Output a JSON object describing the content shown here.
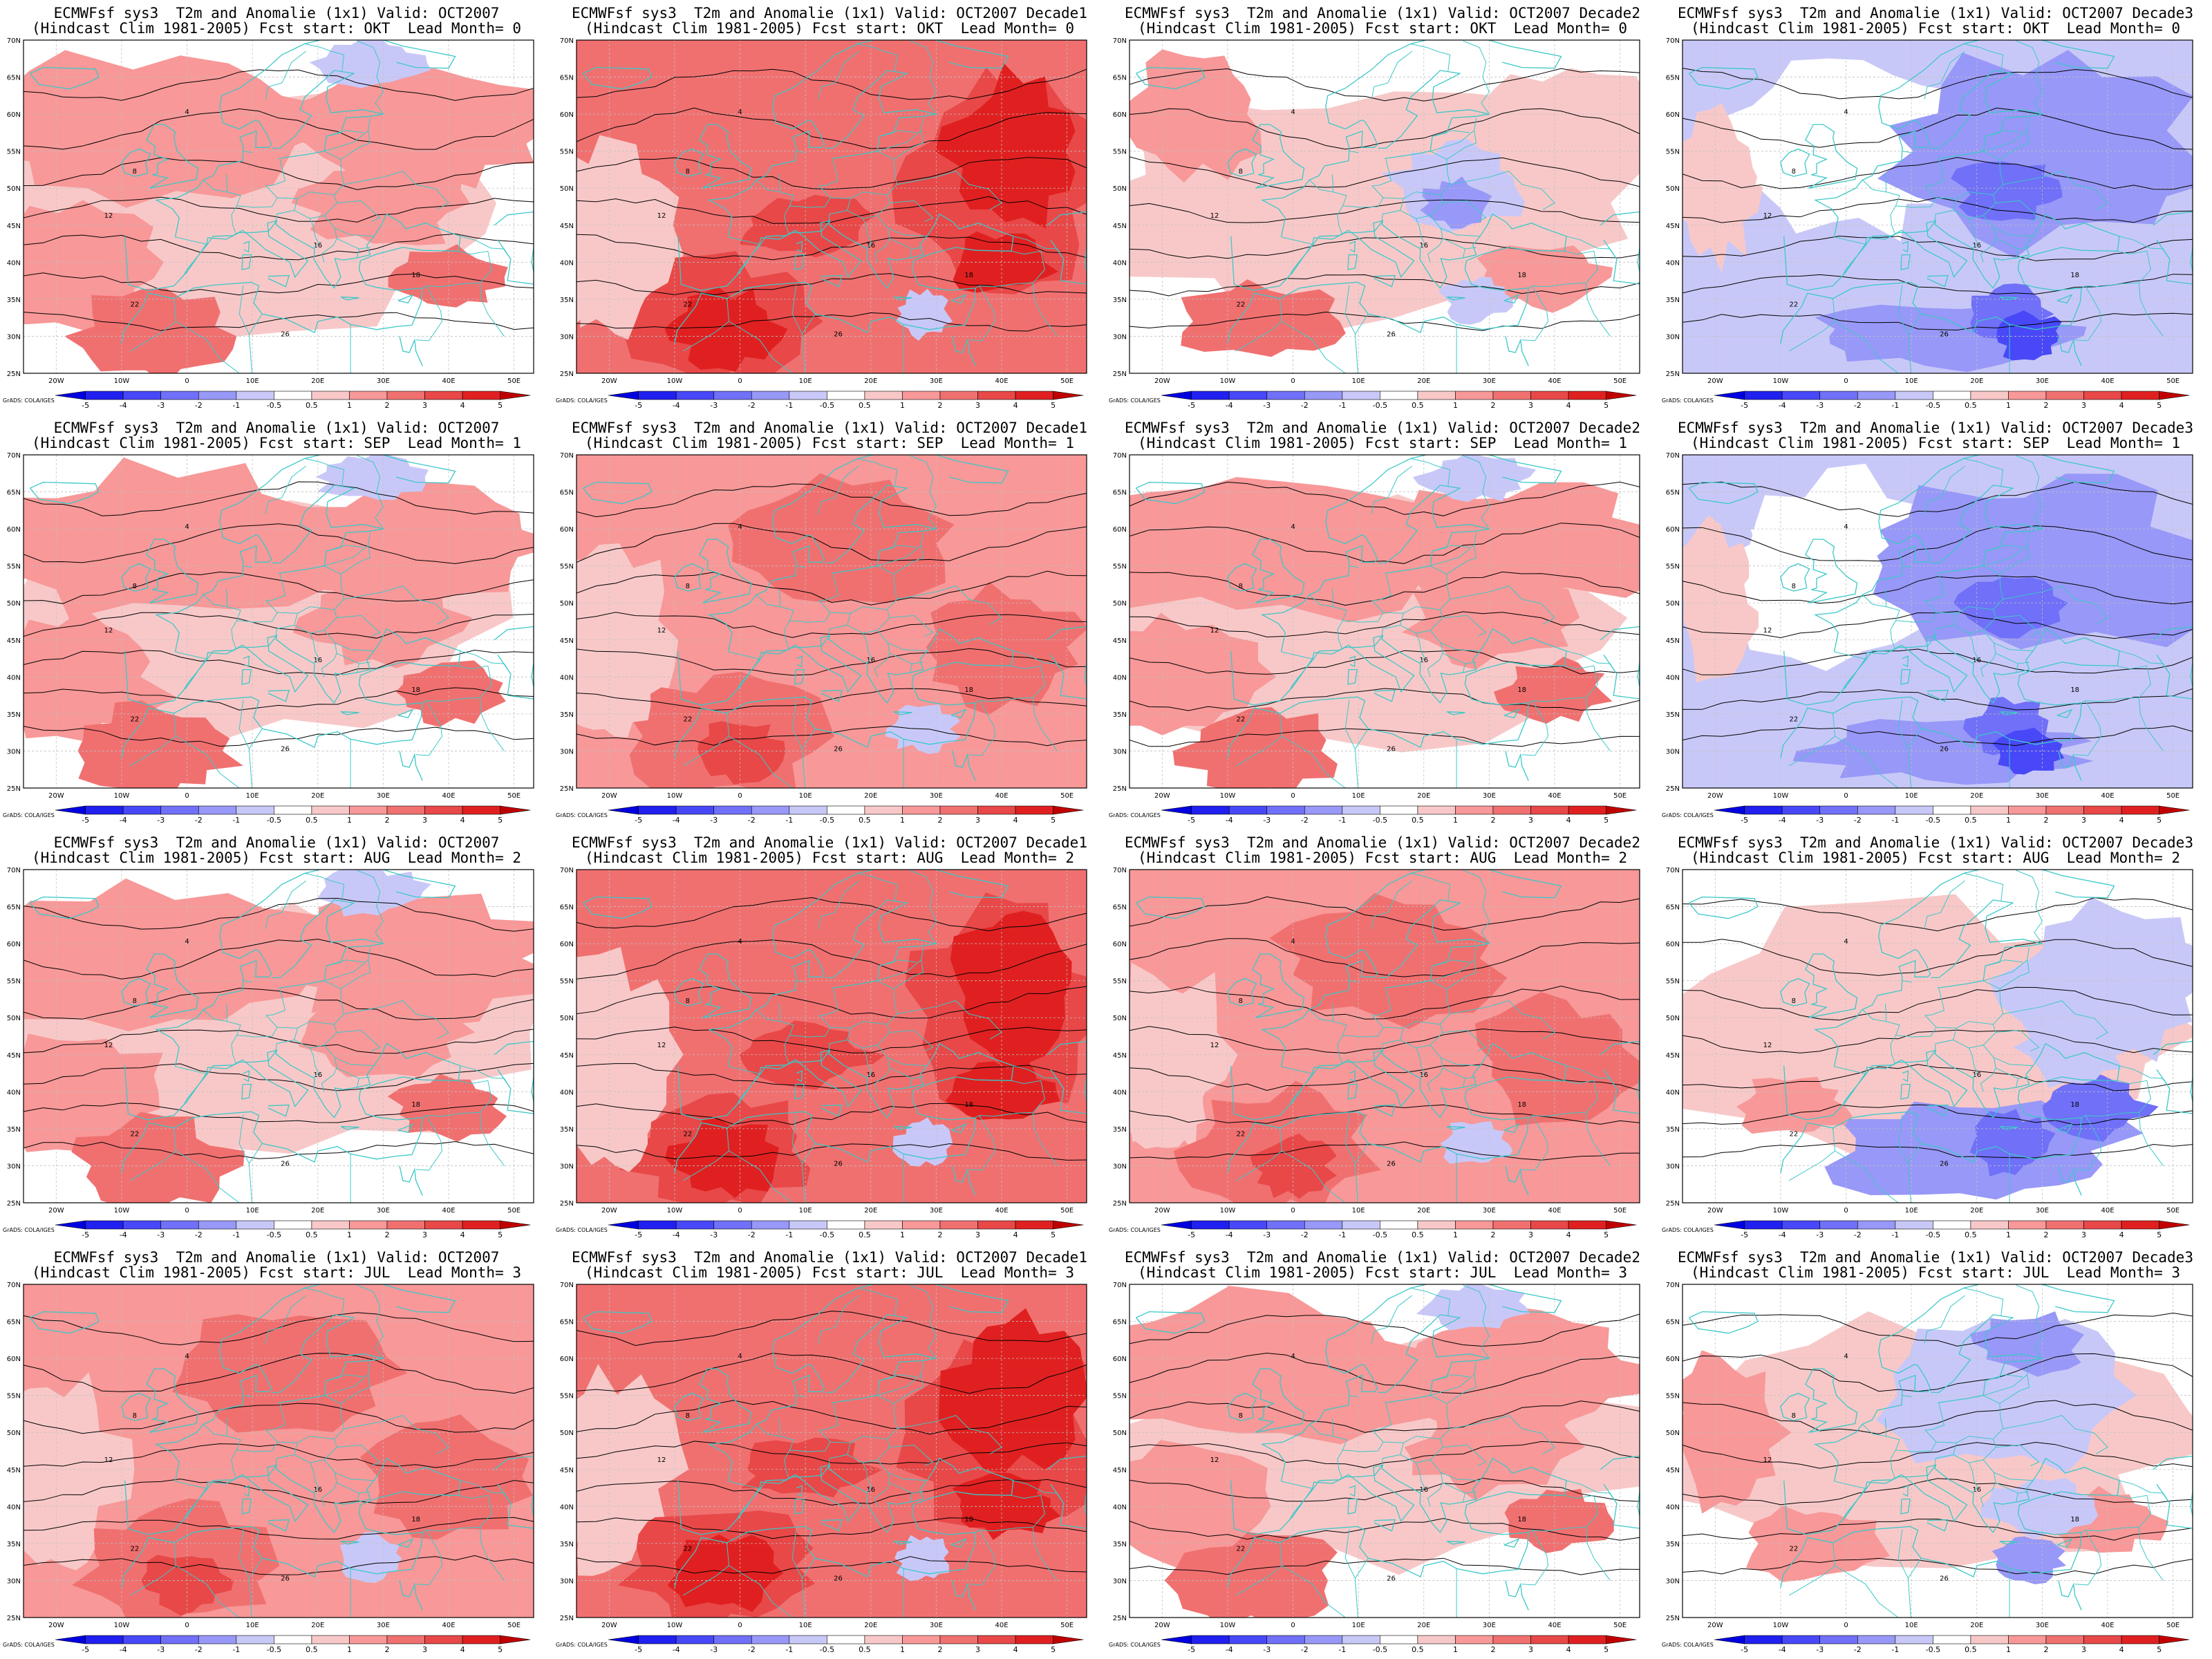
{
  "panels": [
    {
      "title_line1": "ECMWFsf sys3  T2m and Anomalie (1x1) Valid: OCT2007",
      "title_line2": "(Hindcast Clim 1981-2005) Fcst start: OKT  Lead Month= 0",
      "pattern": "mild-warm"
    },
    {
      "title_line1": "ECMWFsf sys3  T2m and Anomalie (1x1) Valid: OCT2007 Decade1",
      "title_line2": "(Hindcast Clim 1981-2005) Fcst start: OKT  Lead Month= 0",
      "pattern": "hot"
    },
    {
      "title_line1": "ECMWFsf sys3  T2m and Anomalie (1x1) Valid: OCT2007 Decade2",
      "title_line2": "(Hindcast Clim 1981-2005) Fcst start: OKT  Lead Month= 0",
      "pattern": "mixed"
    },
    {
      "title_line1": "ECMWFsf sys3  T2m and Anomalie (1x1) Valid: OCT2007 Decade3",
      "title_line2": "(Hindcast Clim 1981-2005) Fcst start: OKT  Lead Month= 0",
      "pattern": "cold"
    },
    {
      "title_line1": "ECMWFsf sys3  T2m and Anomalie (1x1) Valid: OCT2007",
      "title_line2": "(Hindcast Clim 1981-2005) Fcst start: SEP  Lead Month= 1",
      "pattern": "mild-warm"
    },
    {
      "title_line1": "ECMWFsf sys3  T2m and Anomalie (1x1) Valid: OCT2007 Decade1",
      "title_line2": "(Hindcast Clim 1981-2005) Fcst start: SEP  Lead Month= 1",
      "pattern": "warm"
    },
    {
      "title_line1": "ECMWFsf sys3  T2m and Anomalie (1x1) Valid: OCT2007 Decade2",
      "title_line2": "(Hindcast Clim 1981-2005) Fcst start: SEP  Lead Month= 1",
      "pattern": "mild-warm"
    },
    {
      "title_line1": "ECMWFsf sys3  T2m and Anomalie (1x1) Valid: OCT2007 Decade3",
      "title_line2": "(Hindcast Clim 1981-2005) Fcst start: SEP  Lead Month= 1",
      "pattern": "cold"
    },
    {
      "title_line1": "ECMWFsf sys3  T2m and Anomalie (1x1) Valid: OCT2007",
      "title_line2": "(Hindcast Clim 1981-2005) Fcst start: AUG  Lead Month= 2",
      "pattern": "mild-warm"
    },
    {
      "title_line1": "ECMWFsf sys3  T2m and Anomalie (1x1) Valid: OCT2007 Decade1",
      "title_line2": "(Hindcast Clim 1981-2005) Fcst start: AUG  Lead Month= 2",
      "pattern": "hot"
    },
    {
      "title_line1": "ECMWFsf sys3  T2m and Anomalie (1x1) Valid: OCT2007 Decade2",
      "title_line2": "(Hindcast Clim 1981-2005) Fcst start: AUG  Lead Month= 2",
      "pattern": "warm"
    },
    {
      "title_line1": "ECMWFsf sys3  T2m and Anomalie (1x1) Valid: OCT2007 Decade3",
      "title_line2": "(Hindcast Clim 1981-2005) Fcst start: AUG  Lead Month= 2",
      "pattern": "cold-south"
    },
    {
      "title_line1": "ECMWFsf sys3  T2m and Anomalie (1x1) Valid: OCT2007",
      "title_line2": "(Hindcast Clim 1981-2005) Fcst start: JUL  Lead Month= 3",
      "pattern": "warm"
    },
    {
      "title_line1": "ECMWFsf sys3  T2m and Anomalie (1x1) Valid: OCT2007 Decade1",
      "title_line2": "(Hindcast Clim 1981-2005) Fcst start: JUL  Lead Month= 3",
      "pattern": "hot"
    },
    {
      "title_line1": "ECMWFsf sys3  T2m and Anomalie (1x1) Valid: OCT2007 Decade2",
      "title_line2": "(Hindcast Clim 1981-2005) Fcst start: JUL  Lead Month= 3",
      "pattern": "mild-warm"
    },
    {
      "title_line1": "ECMWFsf sys3  T2m and Anomalie (1x1) Valid: OCT2007 Decade3",
      "title_line2": "(Hindcast Clim 1981-2005) Fcst start: JUL  Lead Month= 3",
      "pattern": "mild-cold"
    }
  ],
  "lat_labels": [
    "70N",
    "65N",
    "60N",
    "55N",
    "50N",
    "45N",
    "40N",
    "35N",
    "30N",
    "25N"
  ],
  "lon_labels": [
    "20W",
    "10W",
    "0",
    "10E",
    "20E",
    "30E",
    "40E",
    "50E"
  ],
  "colorbar": {
    "labels": [
      "-5",
      "-4",
      "-3",
      "-2",
      "-1",
      "-0.5",
      "0.5",
      "1",
      "2",
      "3",
      "4",
      "5"
    ],
    "colors": [
      "#0000e0",
      "#2020f0",
      "#4848f8",
      "#7070f8",
      "#9898f8",
      "#c8c8f8",
      "#ffffff",
      "#f8c8c8",
      "#f89898",
      "#f07070",
      "#e84848",
      "#e02020",
      "#c00000"
    ]
  },
  "credit": "GrADS: COLA/IGES",
  "contour_labels": [
    "4",
    "8",
    "12",
    "16",
    "18",
    "22",
    "26"
  ],
  "colors": {
    "coast": "#3cc8c8",
    "contour": "#000000",
    "grid": "#c0c0c0"
  }
}
